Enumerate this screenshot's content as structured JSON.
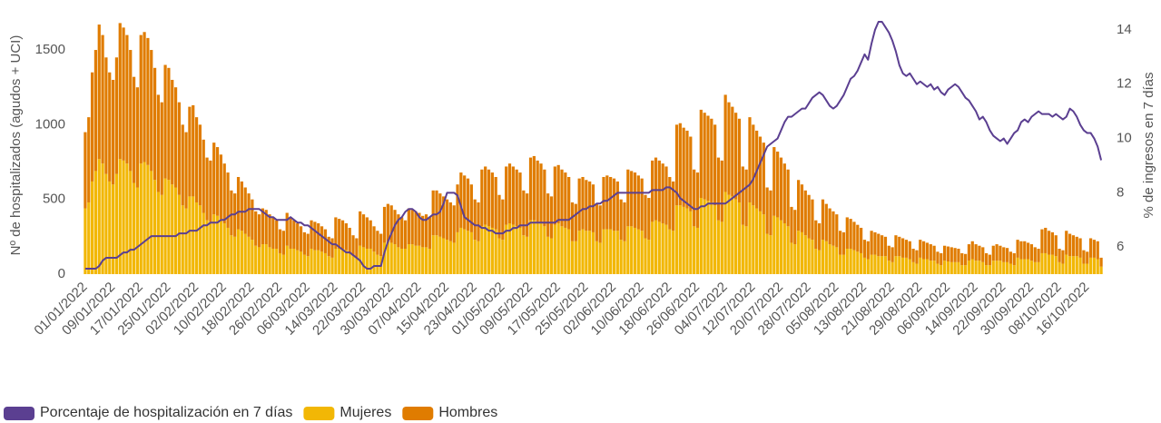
{
  "chart_data": {
    "type": "bar",
    "ylabel": "Nº de hospitalizados (agudos + UCI)",
    "y2label": "% de ingresos en 7 días",
    "ylim": [
      0,
      1725
    ],
    "yticks": [
      0,
      500,
      1000,
      1500
    ],
    "y2lim": [
      5,
      14.5
    ],
    "y2ticks": [
      6,
      8,
      10,
      12,
      14
    ],
    "stacked": true,
    "legend": "bottom-left",
    "categories": [
      "01/01/2022",
      null,
      null,
      null,
      null,
      null,
      null,
      null,
      "09/01/2022",
      null,
      null,
      null,
      null,
      null,
      null,
      null,
      "17/01/2022",
      null,
      null,
      null,
      null,
      null,
      null,
      null,
      "25/01/2022",
      null,
      null,
      null,
      null,
      null,
      null,
      null,
      "02/02/2022",
      null,
      null,
      null,
      null,
      null,
      null,
      null,
      "10/02/2022",
      null,
      null,
      null,
      null,
      null,
      null,
      null,
      "18/02/2022",
      null,
      null,
      null,
      null,
      null,
      null,
      null,
      "26/02/2022",
      null,
      null,
      null,
      null,
      null,
      null,
      null,
      "06/03/2022",
      null,
      null,
      null,
      null,
      null,
      null,
      null,
      "14/03/2022",
      null,
      null,
      null,
      null,
      null,
      null,
      null,
      "22/03/2022",
      null,
      null,
      null,
      null,
      null,
      null,
      null,
      "30/03/2022",
      null,
      null,
      null,
      null,
      null,
      null,
      null,
      "07/04/2022",
      null,
      null,
      null,
      null,
      null,
      null,
      null,
      "15/04/2022",
      null,
      null,
      null,
      null,
      null,
      null,
      null,
      "23/04/2022",
      null,
      null,
      null,
      null,
      null,
      null,
      null,
      "01/05/2022",
      null,
      null,
      null,
      null,
      null,
      null,
      null,
      "09/05/2022",
      null,
      null,
      null,
      null,
      null,
      null,
      null,
      "17/05/2022",
      null,
      null,
      null,
      null,
      null,
      null,
      null,
      "25/05/2022",
      null,
      null,
      null,
      null,
      null,
      null,
      null,
      "02/06/2022",
      null,
      null,
      null,
      null,
      null,
      null,
      null,
      "10/06/2022",
      null,
      null,
      null,
      null,
      null,
      null,
      null,
      "18/06/2022",
      null,
      null,
      null,
      null,
      null,
      null,
      null,
      "26/06/2022",
      null,
      null,
      null,
      null,
      null,
      null,
      null,
      "04/07/2022",
      null,
      null,
      null,
      null,
      null,
      null,
      null,
      "12/07/2022",
      null,
      null,
      null,
      null,
      null,
      null,
      null,
      "20/07/2022",
      null,
      null,
      null,
      null,
      null,
      null,
      null,
      "28/07/2022",
      null,
      null,
      null,
      null,
      null,
      null,
      null,
      "05/08/2022",
      null,
      null,
      null,
      null,
      null,
      null,
      null,
      "13/08/2022",
      null,
      null,
      null,
      null,
      null,
      null,
      null,
      "21/08/2022",
      null,
      null,
      null,
      null,
      null,
      null,
      null,
      "29/08/2022",
      null,
      null,
      null,
      null,
      null,
      null,
      null,
      "06/09/2022",
      null,
      null,
      null,
      null,
      null,
      null,
      null,
      "14/09/2022",
      null,
      null,
      null,
      null,
      null,
      null,
      null,
      "22/09/2022",
      null,
      null,
      null,
      null,
      null,
      null,
      null,
      "30/09/2022",
      null,
      null,
      null,
      null,
      null,
      null,
      null,
      "08/10/2022",
      null,
      null,
      null,
      null,
      null,
      null,
      null,
      "16/10/2022",
      null,
      null,
      null,
      null
    ],
    "series": [
      {
        "name": "Porcentaje de hospitalización en 7 días",
        "color": "#5b3f91",
        "type": "line",
        "axis": "y2",
        "values": [
          5.2,
          5.2,
          5.2,
          5.2,
          5.3,
          5.5,
          5.6,
          5.6,
          5.6,
          5.6,
          5.7,
          5.8,
          5.8,
          5.9,
          5.9,
          6.0,
          6.1,
          6.2,
          6.3,
          6.4,
          6.4,
          6.4,
          6.4,
          6.4,
          6.4,
          6.4,
          6.4,
          6.5,
          6.5,
          6.5,
          6.6,
          6.6,
          6.6,
          6.7,
          6.8,
          6.8,
          6.9,
          6.9,
          6.9,
          7.0,
          7.0,
          7.1,
          7.2,
          7.2,
          7.3,
          7.3,
          7.3,
          7.4,
          7.4,
          7.4,
          7.4,
          7.3,
          7.2,
          7.1,
          7.1,
          7.0,
          7.0,
          7.0,
          7.0,
          7.1,
          7.0,
          6.9,
          6.9,
          6.8,
          6.8,
          6.7,
          6.6,
          6.5,
          6.4,
          6.3,
          6.2,
          6.1,
          6.1,
          6.0,
          5.9,
          5.8,
          5.8,
          5.7,
          5.6,
          5.5,
          5.3,
          5.2,
          5.2,
          5.3,
          5.3,
          5.3,
          5.8,
          6.2,
          6.5,
          6.8,
          7.0,
          7.1,
          7.3,
          7.4,
          7.4,
          7.3,
          7.1,
          7.0,
          7.0,
          7.1,
          7.2,
          7.2,
          7.3,
          7.6,
          8.0,
          8.0,
          8.0,
          7.9,
          7.5,
          7.1,
          7.0,
          6.9,
          6.8,
          6.8,
          6.7,
          6.7,
          6.6,
          6.6,
          6.5,
          6.5,
          6.5,
          6.6,
          6.6,
          6.7,
          6.7,
          6.8,
          6.8,
          6.8,
          6.9,
          6.9,
          6.9,
          6.9,
          6.9,
          6.9,
          6.9,
          6.9,
          7.0,
          7.0,
          7.0,
          7.0,
          7.1,
          7.2,
          7.3,
          7.4,
          7.4,
          7.5,
          7.5,
          7.6,
          7.6,
          7.7,
          7.7,
          7.8,
          7.9,
          8.0,
          8.0,
          8.0,
          8.0,
          8.0,
          8.0,
          8.0,
          8.0,
          8.0,
          8.0,
          8.1,
          8.1,
          8.1,
          8.1,
          8.2,
          8.2,
          8.1,
          8.0,
          7.8,
          7.7,
          7.6,
          7.5,
          7.4,
          7.4,
          7.5,
          7.5,
          7.6,
          7.6,
          7.6,
          7.6,
          7.6,
          7.6,
          7.7,
          7.8,
          7.9,
          8.0,
          8.1,
          8.2,
          8.3,
          8.5,
          8.8,
          9.1,
          9.4,
          9.7,
          9.8,
          9.9,
          10.0,
          10.3,
          10.6,
          10.8,
          10.8,
          10.9,
          11.0,
          11.1,
          11.1,
          11.3,
          11.5,
          11.6,
          11.7,
          11.6,
          11.4,
          11.2,
          11.1,
          11.2,
          11.4,
          11.6,
          11.9,
          12.2,
          12.3,
          12.5,
          12.8,
          13.1,
          12.9,
          13.5,
          14.0,
          14.3,
          14.3,
          14.1,
          13.9,
          13.6,
          13.2,
          12.7,
          12.4,
          12.3,
          12.4,
          12.2,
          12.0,
          12.1,
          12.0,
          11.9,
          12.0,
          11.8,
          11.9,
          11.7,
          11.6,
          11.8,
          11.9,
          12.0,
          11.9,
          11.7,
          11.5,
          11.4,
          11.2,
          11.0,
          10.7,
          10.8,
          10.6,
          10.3,
          10.1,
          10.0,
          9.9,
          10.0,
          9.8,
          10.0,
          10.2,
          10.3,
          10.6,
          10.7,
          10.6,
          10.8,
          10.9,
          11.0,
          10.9,
          10.9,
          10.9,
          10.8,
          10.9,
          10.8,
          10.7,
          10.8,
          11.1,
          11.0,
          10.8,
          10.5,
          10.3,
          10.2,
          10.2,
          10.0,
          9.7,
          9.2
        ]
      },
      {
        "name": "Mujeres",
        "color": "#f2b705",
        "type": "bar",
        "values": [
          440,
          480,
          620,
          690,
          770,
          740,
          670,
          620,
          600,
          670,
          770,
          760,
          740,
          690,
          610,
          580,
          740,
          750,
          730,
          690,
          630,
          550,
          530,
          640,
          630,
          600,
          580,
          530,
          460,
          440,
          520,
          520,
          480,
          460,
          410,
          360,
          350,
          400,
          390,
          370,
          340,
          310,
          260,
          250,
          300,
          290,
          270,
          250,
          230,
          190,
          180,
          200,
          200,
          180,
          170,
          170,
          140,
          130,
          190,
          170,
          170,
          160,
          150,
          130,
          120,
          170,
          160,
          160,
          150,
          140,
          120,
          110,
          170,
          170,
          170,
          160,
          140,
          120,
          110,
          190,
          180,
          170,
          170,
          150,
          130,
          120,
          210,
          220,
          210,
          200,
          180,
          170,
          170,
          200,
          200,
          190,
          190,
          180,
          180,
          170,
          260,
          260,
          250,
          240,
          230,
          220,
          210,
          280,
          310,
          300,
          290,
          280,
          230,
          220,
          320,
          330,
          320,
          310,
          300,
          240,
          230,
          330,
          340,
          330,
          320,
          310,
          260,
          250,
          360,
          360,
          350,
          340,
          320,
          250,
          240,
          330,
          340,
          320,
          310,
          300,
          220,
          220,
          290,
          300,
          290,
          290,
          280,
          220,
          210,
          300,
          300,
          300,
          290,
          290,
          230,
          220,
          320,
          320,
          310,
          300,
          290,
          240,
          230,
          350,
          360,
          350,
          340,
          330,
          300,
          290,
          460,
          460,
          450,
          440,
          420,
          320,
          310,
          510,
          500,
          490,
          480,
          460,
          360,
          350,
          550,
          530,
          520,
          500,
          480,
          330,
          320,
          480,
          460,
          440,
          420,
          400,
          270,
          260,
          390,
          380,
          360,
          340,
          320,
          210,
          200,
          290,
          280,
          260,
          240,
          230,
          170,
          160,
          230,
          220,
          200,
          190,
          180,
          130,
          130,
          170,
          170,
          160,
          150,
          140,
          110,
          100,
          130,
          130,
          120,
          120,
          120,
          90,
          80,
          120,
          120,
          110,
          110,
          100,
          80,
          70,
          110,
          100,
          100,
          90,
          90,
          70,
          60,
          90,
          85,
          80,
          80,
          80,
          60,
          60,
          90,
          100,
          90,
          90,
          80,
          60,
          60,
          90,
          90,
          90,
          80,
          80,
          70,
          60,
          110,
          100,
          100,
          100,
          90,
          80,
          80,
          140,
          140,
          130,
          130,
          120,
          80,
          70,
          130,
          120,
          120,
          120,
          110,
          70,
          70,
          110,
          110,
          100,
          50
        ]
      },
      {
        "name": "Hombres",
        "color": "#e07c00",
        "type": "bar",
        "values": [
          510,
          570,
          730,
          810,
          900,
          860,
          780,
          730,
          700,
          780,
          910,
          890,
          860,
          810,
          710,
          670,
          860,
          870,
          850,
          810,
          750,
          650,
          620,
          760,
          750,
          700,
          670,
          620,
          540,
          510,
          600,
          610,
          570,
          540,
          490,
          420,
          410,
          480,
          460,
          430,
          400,
          370,
          300,
          290,
          350,
          330,
          310,
          290,
          270,
          230,
          220,
          240,
          230,
          220,
          210,
          190,
          160,
          160,
          220,
          210,
          190,
          180,
          170,
          150,
          150,
          190,
          190,
          180,
          170,
          160,
          130,
          130,
          210,
          200,
          190,
          180,
          170,
          140,
          130,
          230,
          220,
          210,
          190,
          170,
          160,
          150,
          240,
          250,
          250,
          230,
          220,
          210,
          190,
          240,
          230,
          230,
          220,
          210,
          220,
          210,
          300,
          300,
          290,
          280,
          270,
          260,
          250,
          320,
          370,
          360,
          350,
          320,
          270,
          260,
          380,
          390,
          380,
          370,
          350,
          290,
          270,
          390,
          400,
          390,
          380,
          370,
          300,
          290,
          420,
          430,
          410,
          400,
          380,
          290,
          280,
          390,
          390,
          380,
          370,
          350,
          260,
          250,
          350,
          350,
          340,
          330,
          320,
          250,
          250,
          350,
          360,
          350,
          350,
          330,
          270,
          260,
          380,
          370,
          370,
          360,
          350,
          290,
          280,
          410,
          420,
          410,
          400,
          390,
          350,
          330,
          540,
          550,
          530,
          520,
          500,
          380,
          370,
          590,
          580,
          570,
          560,
          540,
          420,
          410,
          650,
          620,
          600,
          580,
          560,
          390,
          380,
          570,
          540,
          520,
          500,
          480,
          310,
          300,
          460,
          440,
          420,
          400,
          380,
          240,
          230,
          340,
          320,
          300,
          290,
          270,
          190,
          180,
          270,
          250,
          240,
          230,
          220,
          160,
          150,
          210,
          200,
          190,
          180,
          170,
          120,
          120,
          160,
          150,
          150,
          140,
          130,
          100,
          100,
          140,
          130,
          130,
          120,
          120,
          90,
          90,
          120,
          120,
          110,
          110,
          100,
          80,
          80,
          100,
          100,
          100,
          95,
          90,
          80,
          75,
          110,
          120,
          110,
          100,
          100,
          80,
          70,
          100,
          110,
          100,
          100,
          95,
          80,
          80,
          120,
          120,
          120,
          110,
          110,
          100,
          90,
          160,
          170,
          160,
          150,
          140,
          90,
          90,
          160,
          150,
          140,
          130,
          130,
          90,
          80,
          130,
          120,
          120,
          60
        ]
      }
    ]
  }
}
